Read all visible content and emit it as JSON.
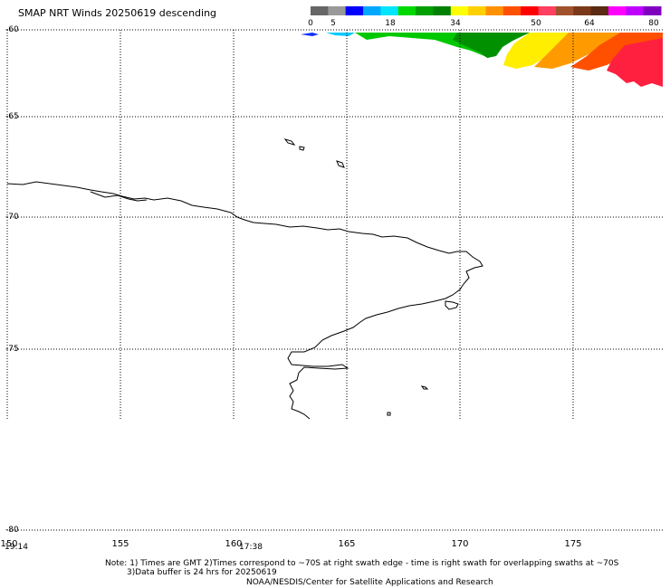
{
  "header": {
    "title": "SMAP NRT Winds  20250619 descending"
  },
  "colorbar": {
    "ticks": [
      "0",
      "5",
      "18",
      "34",
      "50",
      "64",
      "80"
    ],
    "segments": [
      "#666666",
      "#999999",
      "#0000ff",
      "#00a8ff",
      "#00e6ff",
      "#00d800",
      "#00a000",
      "#008000",
      "#ffff00",
      "#ffd000",
      "#ff9000",
      "#ff5000",
      "#ff0000",
      "#ff4060",
      "#a0522d",
      "#7a3a1a",
      "#5a2a12",
      "#ff00ff",
      "#c000ff",
      "#8000c0"
    ]
  },
  "map": {
    "lat_labels": [
      "-60",
      "-65",
      "-70",
      "-75",
      "-80"
    ],
    "lon_labels": [
      "150",
      "155",
      "160",
      "165",
      "170",
      "175"
    ],
    "time_labels": [
      "19:14",
      "17:38"
    ],
    "wind_colors": [
      "#00c800",
      "#00a000",
      "#008000",
      "#ffff00",
      "#ffd000",
      "#ff9000",
      "#ff5000",
      "#ff2040",
      "#0000ff"
    ]
  },
  "footer": {
    "note_line1": "Note: 1) Times are GMT 2)Times correspond to ~70S at right swath edge - time is right swath for overlapping swaths at ~70S",
    "note_line2": "3)Data buffer is 24 hrs for 20250619",
    "credit": "NOAA/NESDIS/Center for Satellite Applications and Research"
  }
}
